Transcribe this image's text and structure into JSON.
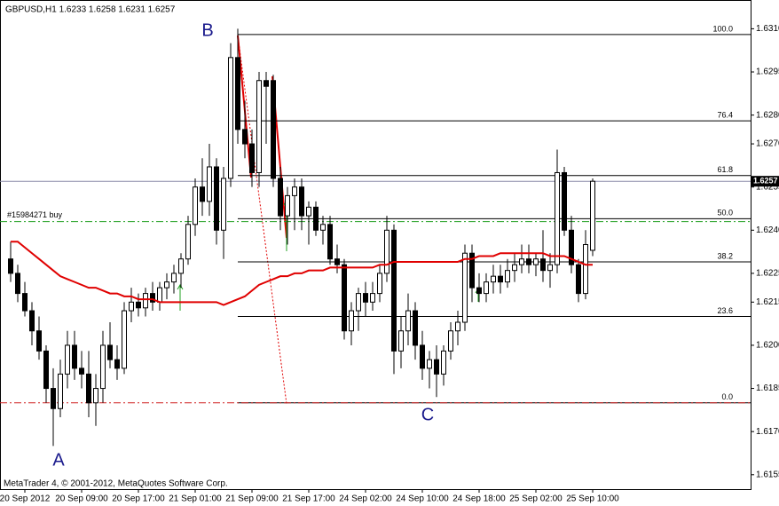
{
  "chart_data": {
    "type": "candlestick",
    "title": "GBPUSD,H1  1.6233 1.6258 1.6231 1.6257",
    "footer": "MetaTrader 4, © 2001-2012, MetaQuotes Software Corp.",
    "ylim": [
      1.615,
      1.632
    ],
    "yticks": [
      {
        "value": 1.631,
        "label": "1.6310"
      },
      1.6295,
      {
        "value": 1.628,
        "label": "1.6280"
      },
      {
        "value": 1.627,
        "label": "1.6270"
      },
      1.6255,
      {
        "value": 1.624,
        "label": "1.6240"
      },
      1.6225,
      1.6215,
      {
        "value": 1.62,
        "label": "1.6200"
      },
      1.6185,
      {
        "value": 1.617,
        "label": "1.6170"
      },
      1.6155
    ],
    "current_price": 1.6257,
    "categories": [
      null,
      null,
      "20 Sep 2012",
      null,
      null,
      null,
      null,
      null,
      null,
      null,
      "20 Sep 09:00",
      null,
      null,
      null,
      null,
      null,
      null,
      null,
      "20 Sep 17:00",
      null,
      null,
      null,
      null,
      null,
      null,
      null,
      "21 Sep 01:00",
      null,
      null,
      null,
      null,
      null,
      null,
      null,
      "21 Sep 09:00",
      null,
      null,
      null,
      null,
      null,
      null,
      null,
      "21 Sep 17:00",
      null,
      null,
      null,
      null,
      null,
      null,
      null,
      "24 Sep 02:00",
      null,
      null,
      null,
      null,
      null,
      null,
      null,
      "24 Sep 10:00",
      null,
      null,
      null,
      null,
      null,
      null,
      null,
      "24 Sep 18:00",
      null,
      null,
      null,
      null,
      null,
      null,
      null,
      "25 Sep 02:00",
      null,
      null,
      null,
      null,
      null,
      null,
      null,
      "25 Sep 10:00"
    ],
    "open": [
      1.623,
      1.6225,
      1.6218,
      1.6212,
      1.6205,
      1.6198,
      1.6185,
      1.6178,
      1.619,
      1.62,
      1.6192,
      1.619,
      1.618,
      1.6185,
      1.62,
      1.6195,
      1.6192,
      1.6212,
      1.6215,
      1.6213,
      1.6218,
      1.6215,
      1.622,
      1.6222,
      1.6225,
      1.623,
      1.6242,
      1.6255,
      1.625,
      1.6262,
      1.624,
      1.6258,
      1.63,
      1.6275,
      1.627,
      1.626,
      1.6292,
      1.6292,
      1.6258,
      1.6245,
      1.6252,
      1.6255,
      1.6245,
      1.6248,
      1.624,
      1.6242,
      1.623,
      1.6228,
      1.6205,
      1.6212,
      1.6218,
      1.6215,
      1.6218,
      1.6225,
      1.624,
      1.6198,
      1.6205,
      1.6212,
      1.62,
      1.6192,
      1.6195,
      1.619,
      1.6198,
      1.6205,
      1.6208,
      1.6232,
      1.622,
      1.6218,
      1.6222,
      1.6224,
      1.6222,
      1.6226,
      1.6228,
      1.623,
      1.6228,
      1.623,
      1.6226,
      1.6228,
      1.626,
      1.624,
      1.6228,
      1.6218,
      1.6233
    ],
    "high": [
      1.6236,
      1.6228,
      1.6222,
      1.6215,
      1.621,
      1.62,
      1.6192,
      1.6195,
      1.6205,
      1.6205,
      1.6198,
      1.6198,
      1.619,
      1.6205,
      1.6208,
      1.62,
      1.6215,
      1.622,
      1.6218,
      1.622,
      1.6222,
      1.6222,
      1.6225,
      1.6228,
      1.6232,
      1.6245,
      1.6258,
      1.6265,
      1.627,
      1.6265,
      1.6262,
      1.6305,
      1.631,
      1.6285,
      1.6275,
      1.6295,
      1.6295,
      1.6294,
      1.6262,
      1.6255,
      1.6258,
      1.6258,
      1.625,
      1.625,
      1.6245,
      1.6245,
      1.6235,
      1.623,
      1.6215,
      1.622,
      1.6222,
      1.6222,
      1.6228,
      1.6245,
      1.6242,
      1.621,
      1.6218,
      1.6215,
      1.6205,
      1.6198,
      1.62,
      1.62,
      1.6208,
      1.6212,
      1.6235,
      1.6235,
      1.6225,
      1.6225,
      1.6228,
      1.6228,
      1.623,
      1.6232,
      1.6235,
      1.6235,
      1.6232,
      1.624,
      1.6232,
      1.6268,
      1.6262,
      1.6245,
      1.623,
      1.624,
      1.6258
    ],
    "low": [
      1.6222,
      1.6215,
      1.621,
      1.62,
      1.6195,
      1.618,
      1.6165,
      1.6175,
      1.6185,
      1.6188,
      1.6185,
      1.6175,
      1.6172,
      1.618,
      1.6192,
      1.6188,
      1.619,
      1.6208,
      1.621,
      1.621,
      1.6212,
      1.6212,
      1.6216,
      1.6218,
      1.622,
      1.6228,
      1.6238,
      1.6245,
      1.6245,
      1.6235,
      1.623,
      1.6255,
      1.627,
      1.6265,
      1.6255,
      1.6255,
      1.627,
      1.6255,
      1.624,
      1.6235,
      1.624,
      1.624,
      1.6235,
      1.6238,
      1.6235,
      1.6228,
      1.6225,
      1.6202,
      1.62,
      1.6205,
      1.621,
      1.6212,
      1.6215,
      1.6222,
      1.619,
      1.6192,
      1.62,
      1.6195,
      1.6188,
      1.6185,
      1.6182,
      1.6186,
      1.6195,
      1.62,
      1.6205,
      1.6215,
      1.6215,
      1.6215,
      1.6218,
      1.6218,
      1.622,
      1.6222,
      1.6225,
      1.6225,
      1.6224,
      1.6222,
      1.622,
      1.6225,
      1.6238,
      1.6225,
      1.6215,
      1.6216,
      1.6231
    ],
    "close": [
      1.6225,
      1.6218,
      1.6212,
      1.6205,
      1.6198,
      1.6185,
      1.6178,
      1.619,
      1.62,
      1.6192,
      1.619,
      1.618,
      1.6185,
      1.62,
      1.6195,
      1.6192,
      1.6212,
      1.6215,
      1.6213,
      1.6218,
      1.6215,
      1.622,
      1.6222,
      1.6225,
      1.623,
      1.6242,
      1.6255,
      1.625,
      1.6262,
      1.624,
      1.6258,
      1.63,
      1.6275,
      1.627,
      1.626,
      1.6292,
      1.629,
      1.6258,
      1.6245,
      1.6252,
      1.6255,
      1.6245,
      1.6248,
      1.624,
      1.6242,
      1.623,
      1.6228,
      1.6205,
      1.6212,
      1.6218,
      1.6215,
      1.6218,
      1.6225,
      1.624,
      1.6198,
      1.6205,
      1.6212,
      1.62,
      1.6192,
      1.6195,
      1.619,
      1.6198,
      1.6205,
      1.6208,
      1.6232,
      1.622,
      1.6218,
      1.6222,
      1.6224,
      1.6222,
      1.6226,
      1.6228,
      1.623,
      1.6228,
      1.623,
      1.6226,
      1.6228,
      1.626,
      1.624,
      1.6228,
      1.6218,
      1.6235,
      1.6257
    ],
    "moving_average": {
      "color": "#e00000",
      "values": [
        1.6236,
        1.6236,
        1.6234,
        1.6232,
        1.623,
        1.6228,
        1.6226,
        1.6224,
        1.6223,
        1.6222,
        1.6221,
        1.622,
        1.622,
        1.6219,
        1.6218,
        1.6218,
        1.6217,
        1.6217,
        1.6216,
        1.6216,
        1.6216,
        1.6215,
        1.6215,
        1.6215,
        1.6215,
        1.6215,
        1.6215,
        1.6215,
        1.6215,
        1.6215,
        1.6214,
        1.6215,
        1.6216,
        1.6217,
        1.6219,
        1.6221,
        1.6222,
        1.6223,
        1.6224,
        1.6224,
        1.6225,
        1.6225,
        1.6226,
        1.6226,
        1.6226,
        1.6227,
        1.6227,
        1.6227,
        1.6227,
        1.6227,
        1.6227,
        1.6227,
        1.6228,
        1.6228,
        1.6229,
        1.6229,
        1.6229,
        1.6229,
        1.6229,
        1.6229,
        1.6229,
        1.6229,
        1.6229,
        1.6229,
        1.623,
        1.623,
        1.6231,
        1.6231,
        1.6231,
        1.6232,
        1.6232,
        1.6232,
        1.6232,
        1.6232,
        1.6232,
        1.6232,
        1.6231,
        1.6231,
        1.6231,
        1.623,
        1.6229,
        1.6228,
        1.6228
      ]
    },
    "fibonacci": [
      {
        "label": "100.0",
        "price": 1.6308
      },
      {
        "label": "76.4",
        "price": 1.6278
      },
      {
        "label": "61.8",
        "price": 1.6259
      },
      {
        "label": "50.0",
        "price": 1.6244
      },
      {
        "label": "38.2",
        "price": 1.6229
      },
      {
        "label": "23.6",
        "price": 1.621
      },
      {
        "label": "0.0",
        "price": 1.618
      }
    ],
    "order": {
      "label": "#15984271 buy",
      "price": 1.6243,
      "color": "#22a022"
    },
    "stop_line": {
      "price": 1.618,
      "color": "#d02020"
    },
    "points": [
      "A",
      "B",
      "C"
    ]
  }
}
